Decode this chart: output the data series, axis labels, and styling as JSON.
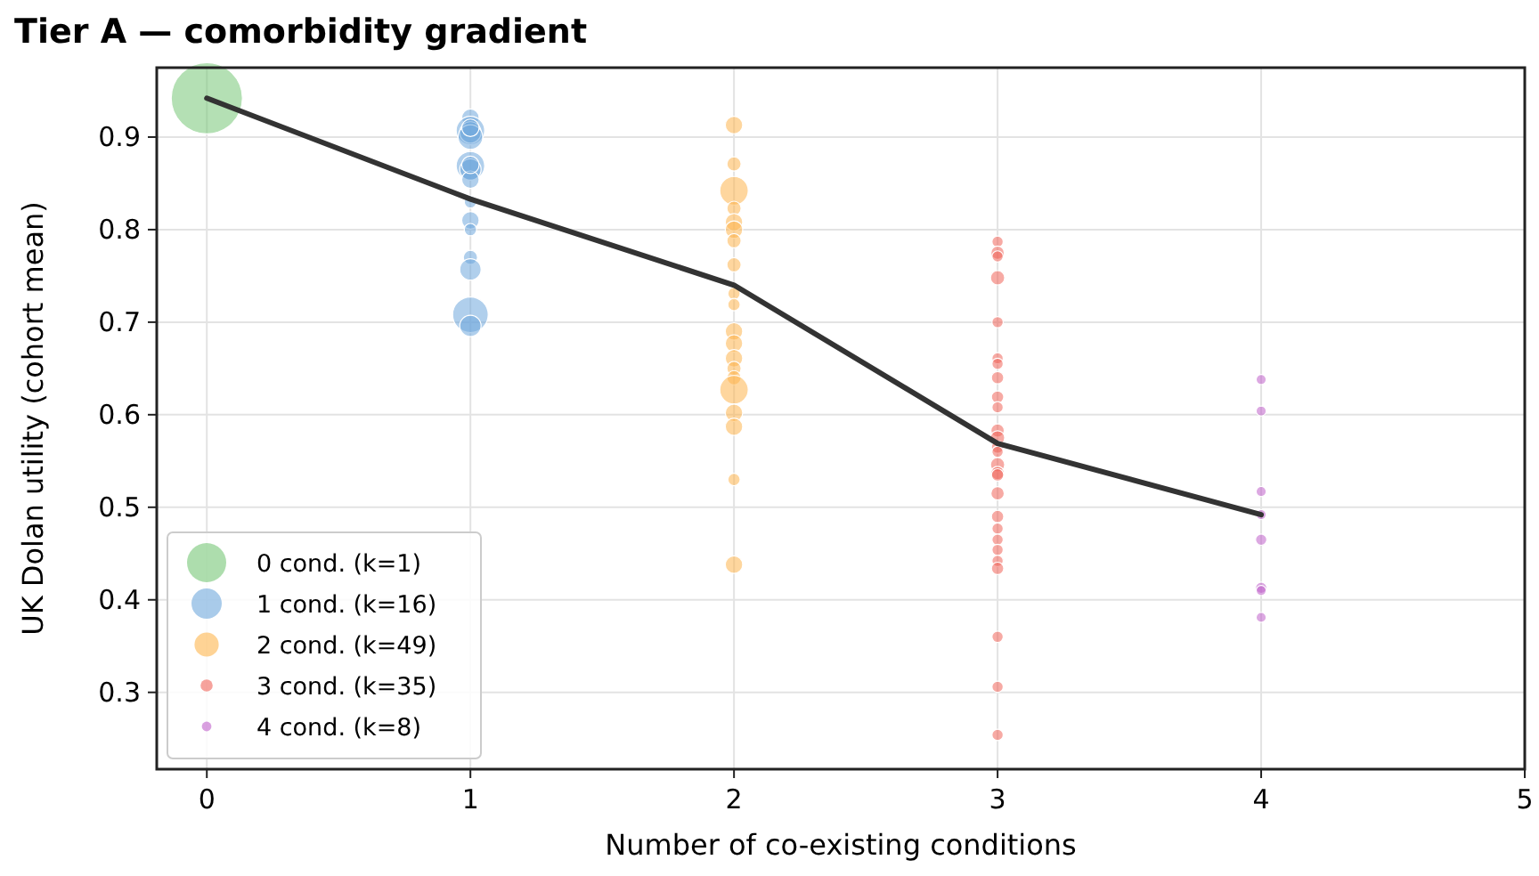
{
  "chart_data": {
    "type": "bubble",
    "title": "Tier A — comorbidity gradient",
    "xlabel": "Number of co-existing conditions",
    "ylabel": "UK Dolan utility (cohort mean)",
    "xlim": [
      -0.19,
      5
    ],
    "xticks": [
      0,
      1,
      2,
      3,
      4,
      5
    ],
    "ylim": [
      0.217,
      0.975
    ],
    "yticks": [
      0.3,
      0.4,
      0.5,
      0.6,
      0.7,
      0.8,
      0.9
    ],
    "grid": true,
    "legend": "bottom left",
    "series": [
      {
        "name": "0 cond. (k=1)",
        "color": "#77c777",
        "x": [
          0
        ],
        "values": [
          0.942
        ],
        "sizes": [
          1
        ]
      },
      {
        "name": "1 cond. (k=16)",
        "color": "#6fa8dc",
        "x": [
          1,
          1,
          1,
          1,
          1,
          1,
          1,
          1,
          1,
          1,
          1,
          1,
          1,
          1,
          1,
          1
        ],
        "values": [
          0.921,
          0.907,
          0.905,
          0.9,
          0.869,
          0.865,
          0.854,
          0.83,
          0.81,
          0.8,
          0.77,
          0.757,
          0.708,
          0.696,
          0.91,
          0.87
        ],
        "sizes": [
          0.06,
          0.16,
          0.09,
          0.12,
          0.16,
          0.09,
          0.06,
          0.03,
          0.06,
          0.03,
          0.04,
          0.09,
          0.25,
          0.09,
          0.06,
          0.06
        ]
      },
      {
        "name": "2 cond. (k=49)",
        "color": "#fdb54f",
        "x": [
          2,
          2,
          2,
          2,
          2,
          2,
          2,
          2,
          2,
          2,
          2,
          2,
          2,
          2,
          2,
          2,
          2,
          2,
          2,
          2
        ],
        "values": [
          0.913,
          0.871,
          0.842,
          0.823,
          0.808,
          0.8,
          0.788,
          0.762,
          0.731,
          0.719,
          0.69,
          0.677,
          0.661,
          0.65,
          0.64,
          0.627,
          0.602,
          0.587,
          0.53,
          0.438
        ],
        "sizes": [
          0.06,
          0.04,
          0.16,
          0.04,
          0.06,
          0.06,
          0.04,
          0.04,
          0.03,
          0.03,
          0.06,
          0.06,
          0.06,
          0.04,
          0.04,
          0.16,
          0.06,
          0.06,
          0.03,
          0.06
        ]
      },
      {
        "name": "3 cond. (k=35)",
        "color": "#f0645a",
        "x": [
          3,
          3,
          3,
          3,
          3,
          3,
          3,
          3,
          3,
          3,
          3,
          3,
          3,
          3,
          3,
          3,
          3,
          3,
          3,
          3,
          3,
          3,
          3,
          3,
          3,
          3,
          3
        ],
        "values": [
          0.787,
          0.775,
          0.771,
          0.748,
          0.7,
          0.661,
          0.655,
          0.64,
          0.619,
          0.608,
          0.583,
          0.575,
          0.565,
          0.56,
          0.546,
          0.537,
          0.535,
          0.515,
          0.49,
          0.477,
          0.465,
          0.454,
          0.442,
          0.434,
          0.36,
          0.306,
          0.254
        ],
        "sizes": [
          0.025,
          0.035,
          0.025,
          0.04,
          0.025,
          0.025,
          0.025,
          0.03,
          0.03,
          0.025,
          0.035,
          0.04,
          0.03,
          0.025,
          0.04,
          0.035,
          0.03,
          0.035,
          0.03,
          0.025,
          0.025,
          0.025,
          0.025,
          0.03,
          0.025,
          0.025,
          0.025
        ]
      },
      {
        "name": "4 cond. (k=8)",
        "color": "#c061cb",
        "x": [
          4,
          4,
          4,
          4,
          4,
          4,
          4,
          4
        ],
        "values": [
          0.638,
          0.604,
          0.517,
          0.492,
          0.465,
          0.413,
          0.41,
          0.381
        ],
        "sizes": [
          0.02,
          0.02,
          0.02,
          0.02,
          0.025,
          0.025,
          0.02,
          0.02
        ]
      },
      {
        "type": "line",
        "color": "#333333",
        "x": [
          0,
          1,
          2,
          3,
          4
        ],
        "values": [
          0.942,
          0.833,
          0.74,
          0.569,
          0.492
        ]
      }
    ]
  }
}
